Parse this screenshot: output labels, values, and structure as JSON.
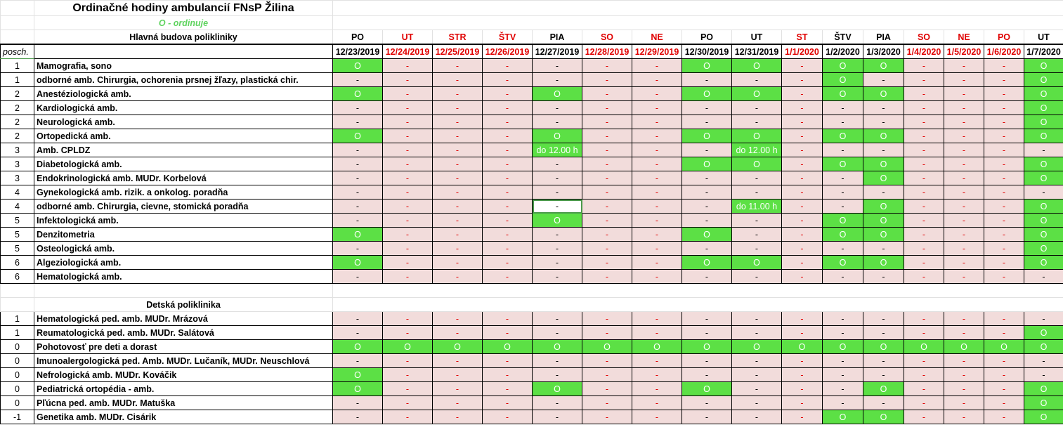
{
  "title": "Ordinačné hodiny ambulancií FNsP Žilina",
  "legend": "O - ordinuje",
  "section_main": "Hlavná budova polikliniky",
  "section_kids": "Detská poliklinika",
  "posch_label": "posch.",
  "colors": {
    "open": "#5ce045",
    "closed": "#f2dcdb",
    "holiday_text": "#e00000",
    "legend": "#5fd35f"
  },
  "columns": [
    {
      "day": "PO",
      "date": "12/23/2019",
      "red": false
    },
    {
      "day": "UT",
      "date": "12/24/2019",
      "red": true
    },
    {
      "day": "STR",
      "date": "12/25/2019",
      "red": true
    },
    {
      "day": "ŠTV",
      "date": "12/26/2019",
      "red": true
    },
    {
      "day": "PIA",
      "date": "12/27/2019",
      "red": false
    },
    {
      "day": "SO",
      "date": "12/28/2019",
      "red": true
    },
    {
      "day": "NE",
      "date": "12/29/2019",
      "red": true
    },
    {
      "day": "PO",
      "date": "12/30/2019",
      "red": false
    },
    {
      "day": "UT",
      "date": "12/31/2019",
      "red": false
    },
    {
      "day": "ST",
      "date": "1/1/2020",
      "red": true
    },
    {
      "day": "ŠTV",
      "date": "1/2/2020",
      "red": false
    },
    {
      "day": "PIA",
      "date": "1/3/2020",
      "red": false
    },
    {
      "day": "SO",
      "date": "1/4/2020",
      "red": true
    },
    {
      "day": "NE",
      "date": "1/5/2020",
      "red": true
    },
    {
      "day": "PO",
      "date": "1/6/2020",
      "red": true
    },
    {
      "day": "UT",
      "date": "1/7/2020",
      "red": false
    }
  ],
  "main_rows": [
    {
      "posch": "1",
      "name": "Mamografia, sono",
      "cells": [
        "O",
        "-",
        "-",
        "-",
        "-",
        "-",
        "-",
        "O",
        "O",
        "-",
        "O",
        "O",
        "-",
        "-",
        "-",
        "O"
      ]
    },
    {
      "posch": "1",
      "name": "odborné amb. Chirurgia, ochorenia prsnej žľazy, plastická chir.",
      "cells": [
        "-",
        "-",
        "-",
        "-",
        "-",
        "-",
        "-",
        "-",
        "-",
        "-",
        "O",
        "-",
        "-",
        "-",
        "-",
        "O"
      ]
    },
    {
      "posch": "2",
      "name": "Anestéziologická amb.",
      "cells": [
        "O",
        "-",
        "-",
        "-",
        "O",
        "-",
        "-",
        "O",
        "O",
        "-",
        "O",
        "O",
        "-",
        "-",
        "-",
        "O"
      ]
    },
    {
      "posch": "2",
      "name": "Kardiologická amb.",
      "cells": [
        "-",
        "-",
        "-",
        "-",
        "-",
        "-",
        "-",
        "-",
        "-",
        "-",
        "-",
        "-",
        "-",
        "-",
        "-",
        "O"
      ]
    },
    {
      "posch": "2",
      "name": "Neurologická amb.",
      "cells": [
        "-",
        "-",
        "-",
        "-",
        "-",
        "-",
        "-",
        "-",
        "-",
        "-",
        "-",
        "-",
        "-",
        "-",
        "-",
        "O"
      ]
    },
    {
      "posch": "2",
      "name": "Ortopedická amb.",
      "cells": [
        "O",
        "-",
        "-",
        "-",
        "O",
        "-",
        "-",
        "O",
        "O",
        "-",
        "O",
        "O",
        "-",
        "-",
        "-",
        "O"
      ]
    },
    {
      "posch": "3",
      "name": "Amb. CPLDZ",
      "cells": [
        "-",
        "-",
        "-",
        "-",
        "do 12.00 h",
        "-",
        "-",
        "-",
        "do 12.00 h",
        "-",
        "-",
        "-",
        "-",
        "-",
        "-",
        "-"
      ]
    },
    {
      "posch": "3",
      "name": "Diabetologická amb.",
      "cells": [
        "-",
        "-",
        "-",
        "-",
        "-",
        "-",
        "-",
        "O",
        "O",
        "-",
        "O",
        "O",
        "-",
        "-",
        "-",
        "O"
      ]
    },
    {
      "posch": "3",
      "name": "Endokrinologická amb. MUDr. Korbelová",
      "cells": [
        "-",
        "-",
        "-",
        "-",
        "-",
        "-",
        "-",
        "-",
        "-",
        "-",
        "-",
        "O",
        "-",
        "-",
        "-",
        "O"
      ]
    },
    {
      "posch": "4",
      "name": "Gynekologická amb. rizik. a onkolog. poradňa",
      "cells": [
        "-",
        "-",
        "-",
        "-",
        "-",
        "-",
        "-",
        "-",
        "-",
        "-",
        "-",
        "-",
        "-",
        "-",
        "-",
        "-"
      ]
    },
    {
      "posch": "4",
      "name": "odborné amb. Chirurgia, cievne, stomická poradňa",
      "cells": [
        "-",
        "-",
        "-",
        "-",
        "-",
        "-",
        "-",
        "-",
        "do 11.00 h",
        "-",
        "-",
        "O",
        "-",
        "-",
        "-",
        "O"
      ],
      "selected": 4
    },
    {
      "posch": "5",
      "name": "Infektologická amb.",
      "cells": [
        "-",
        "-",
        "-",
        "-",
        "O",
        "-",
        "-",
        "-",
        "-",
        "-",
        "O",
        "O",
        "-",
        "-",
        "-",
        "O"
      ]
    },
    {
      "posch": "5",
      "name": "Denzitometria",
      "cells": [
        "O",
        "-",
        "-",
        "-",
        "-",
        "-",
        "-",
        "O",
        "-",
        "-",
        "O",
        "O",
        "-",
        "-",
        "-",
        "O"
      ]
    },
    {
      "posch": "5",
      "name": "Osteologická amb.",
      "cells": [
        "-",
        "-",
        "-",
        "-",
        "-",
        "-",
        "-",
        "-",
        "-",
        "-",
        "-",
        "-",
        "-",
        "-",
        "-",
        "O"
      ]
    },
    {
      "posch": "6",
      "name": "Algeziologická amb.",
      "cells": [
        "O",
        "-",
        "-",
        "-",
        "-",
        "-",
        "-",
        "O",
        "O",
        "-",
        "O",
        "O",
        "-",
        "-",
        "-",
        "O"
      ]
    },
    {
      "posch": "6",
      "name": "Hematologická amb.",
      "cells": [
        "-",
        "-",
        "-",
        "-",
        "-",
        "-",
        "-",
        "-",
        "-",
        "-",
        "-",
        "-",
        "-",
        "-",
        "-",
        "-"
      ]
    }
  ],
  "kids_rows": [
    {
      "posch": "1",
      "name": "Hematologická ped. amb. MUDr. Mrázová",
      "cells": [
        "-",
        "-",
        "-",
        "-",
        "-",
        "-",
        "-",
        "-",
        "-",
        "-",
        "-",
        "-",
        "-",
        "-",
        "-",
        "-"
      ]
    },
    {
      "posch": "1",
      "name": "Reumatologická ped. amb. MUDr. Salátová",
      "cells": [
        "-",
        "-",
        "-",
        "-",
        "-",
        "-",
        "-",
        "-",
        "-",
        "-",
        "-",
        "-",
        "-",
        "-",
        "-",
        "O"
      ]
    },
    {
      "posch": "0",
      "name": "Pohotovosť pre deti a dorast",
      "cells": [
        "O",
        "O",
        "O",
        "O",
        "O",
        "O",
        "O",
        "O",
        "O",
        "O",
        "O",
        "O",
        "O",
        "O",
        "O",
        "O"
      ]
    },
    {
      "posch": "0",
      "name": "Imunoalergologická ped. Amb. MUDr. Lučaník, MUDr. Neuschlová",
      "cells": [
        "-",
        "-",
        "-",
        "-",
        "-",
        "-",
        "-",
        "-",
        "-",
        "-",
        "-",
        "-",
        "-",
        "-",
        "-",
        "-"
      ]
    },
    {
      "posch": "0",
      "name": "Nefrologická amb. MUDr. Kováčik",
      "cells": [
        "O",
        "-",
        "-",
        "-",
        "-",
        "-",
        "-",
        "-",
        "-",
        "-",
        "-",
        "-",
        "-",
        "-",
        "-",
        "-"
      ]
    },
    {
      "posch": "0",
      "name": "Pediatrická ortopédia - amb.",
      "cells": [
        "O",
        "-",
        "-",
        "-",
        "O",
        "-",
        "-",
        "O",
        "-",
        "-",
        "-",
        "O",
        "-",
        "-",
        "-",
        "O"
      ]
    },
    {
      "posch": "0",
      "name": "Pľúcna ped. amb. MUDr. Matuška",
      "cells": [
        "-",
        "-",
        "-",
        "-",
        "-",
        "-",
        "-",
        "-",
        "-",
        "-",
        "-",
        "-",
        "-",
        "-",
        "-",
        "O"
      ]
    },
    {
      "posch": "-1",
      "name": "Genetika amb. MUDr. Cisárik",
      "cells": [
        "-",
        "-",
        "-",
        "-",
        "-",
        "-",
        "-",
        "-",
        "-",
        "-",
        "O",
        "O",
        "-",
        "-",
        "-",
        "O"
      ]
    }
  ]
}
